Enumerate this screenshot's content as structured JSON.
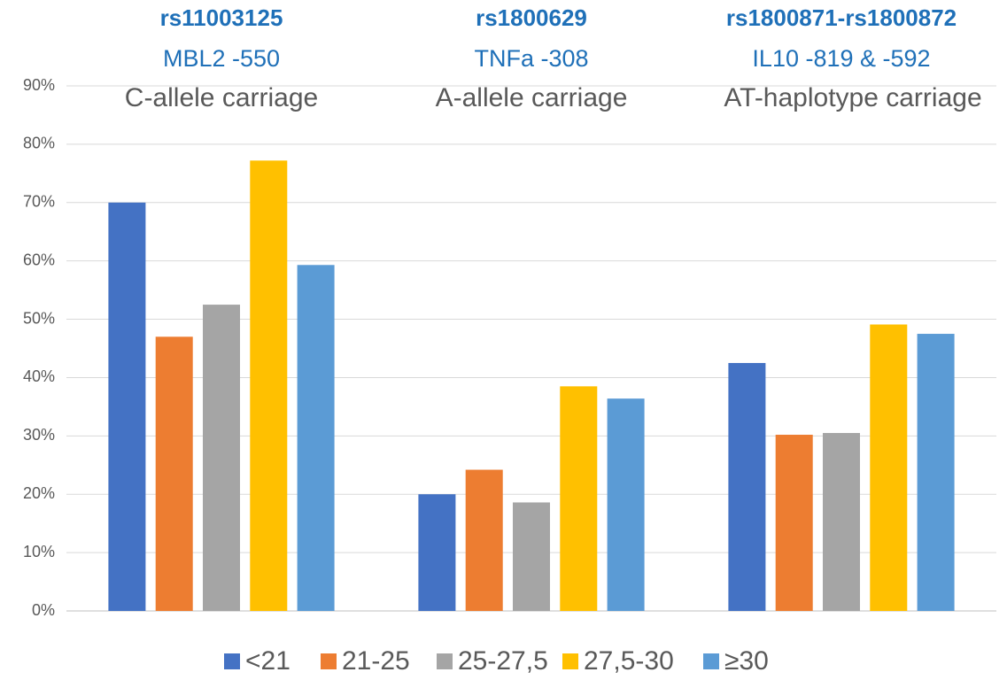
{
  "chart_data": {
    "type": "bar",
    "categories": [
      "C-allele carriage",
      "A-allele carriage",
      "AT-haplotype carriage"
    ],
    "group_headers": [
      {
        "snp": "rs11003125",
        "gene": "MBL2 -550"
      },
      {
        "snp": "rs1800629",
        "gene": "TNFa -308"
      },
      {
        "snp": "rs1800871-rs1800872",
        "gene": "IL10 -819 & -592"
      }
    ],
    "series": [
      {
        "name": "<21",
        "color": "#4472c4",
        "values": [
          70,
          20,
          42.5
        ]
      },
      {
        "name": "21-25",
        "color": "#ed7d31",
        "values": [
          47,
          24.2,
          30.2
        ]
      },
      {
        "name": "25-27,5",
        "color": "#a5a5a5",
        "values": [
          52.5,
          18.6,
          30.5
        ]
      },
      {
        "name": "27,5-30",
        "color": "#ffc000",
        "values": [
          77.2,
          38.5,
          49.1
        ]
      },
      {
        "name": "≥30",
        "color": "#5b9bd5",
        "values": [
          59.3,
          36.4,
          47.5
        ]
      }
    ],
    "ylim": [
      0,
      90
    ],
    "yticks": [
      {
        "value": 0,
        "label": "0%"
      },
      {
        "value": 10,
        "label": "10%"
      },
      {
        "value": 20,
        "label": "20%"
      },
      {
        "value": 30,
        "label": "30%"
      },
      {
        "value": 40,
        "label": "40%"
      },
      {
        "value": 50,
        "label": "50%"
      },
      {
        "value": 60,
        "label": "60%"
      },
      {
        "value": 70,
        "label": "70%"
      },
      {
        "value": 80,
        "label": "80%"
      },
      {
        "value": 90,
        "label": "90%"
      }
    ],
    "grid": true,
    "legend": "bottom"
  }
}
